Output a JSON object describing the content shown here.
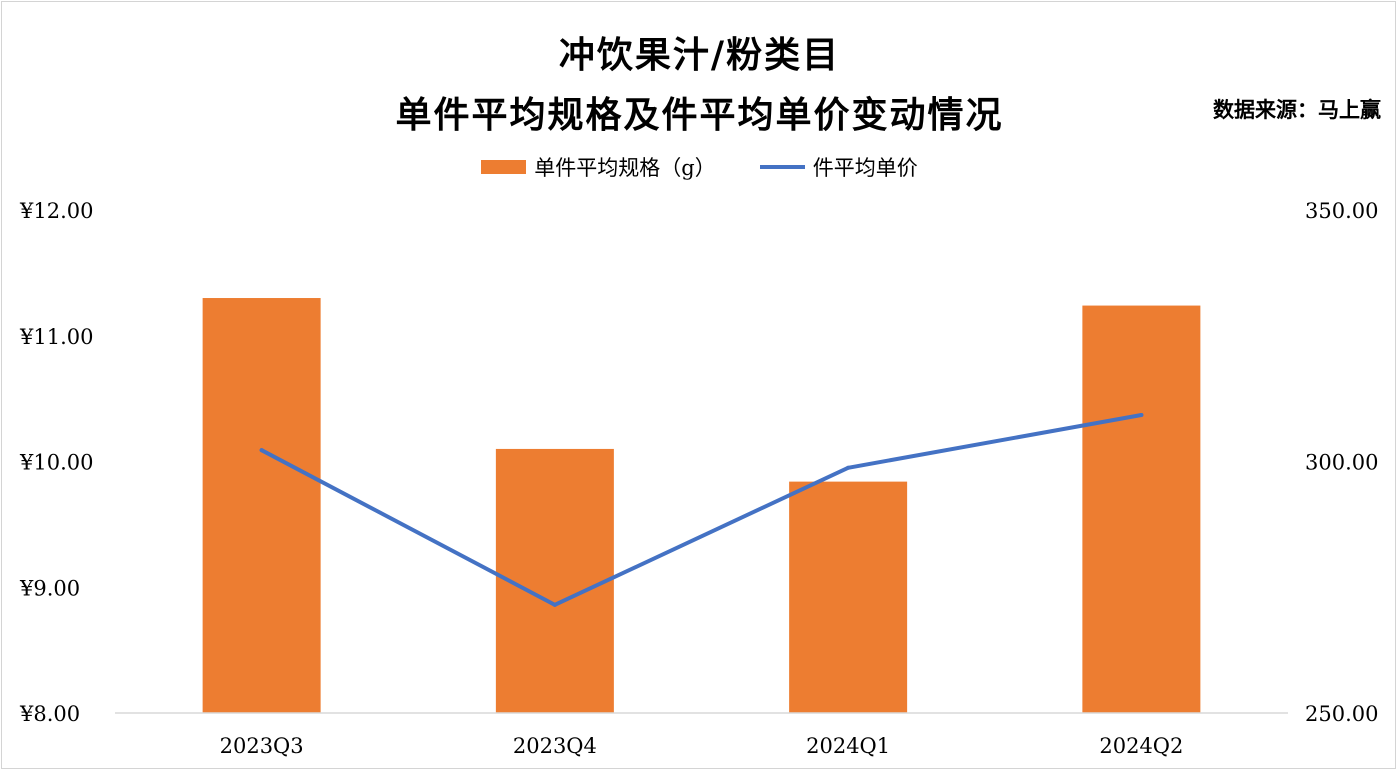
{
  "colors": {
    "bar": "#ED7D31",
    "line": "#4472C4",
    "axis": "#D9D9D9",
    "text": "#000000"
  },
  "header": {
    "title_line1": "冲饮果汁/粉类目",
    "title_line2": "单件平均规格及件平均单价变动情况",
    "source": "数据来源：马上赢"
  },
  "chart_data": {
    "type": "bar",
    "categories": [
      "2023Q3",
      "2023Q4",
      "2024Q1",
      "2024Q2"
    ],
    "series": [
      {
        "name": "单件平均规格（g）",
        "type": "bar",
        "axis": "right",
        "values": [
          332.5,
          302.5,
          296,
          331
        ]
      },
      {
        "name": "件平均单价",
        "type": "line",
        "axis": "left",
        "values": [
          10.09,
          8.86,
          9.95,
          10.37
        ]
      }
    ],
    "left_axis": {
      "ylim": [
        8,
        12
      ],
      "ticks": [
        8,
        9,
        10,
        11,
        12
      ],
      "tick_labels": [
        "¥8.00",
        "¥9.00",
        "¥10.00",
        "¥11.00",
        "¥12.00"
      ]
    },
    "right_axis": {
      "ylim": [
        250,
        350
      ],
      "ticks": [
        250,
        300,
        350
      ],
      "tick_labels": [
        "250.00",
        "300.00",
        "350.00"
      ]
    },
    "legend_position": "top-center",
    "grid": false
  }
}
